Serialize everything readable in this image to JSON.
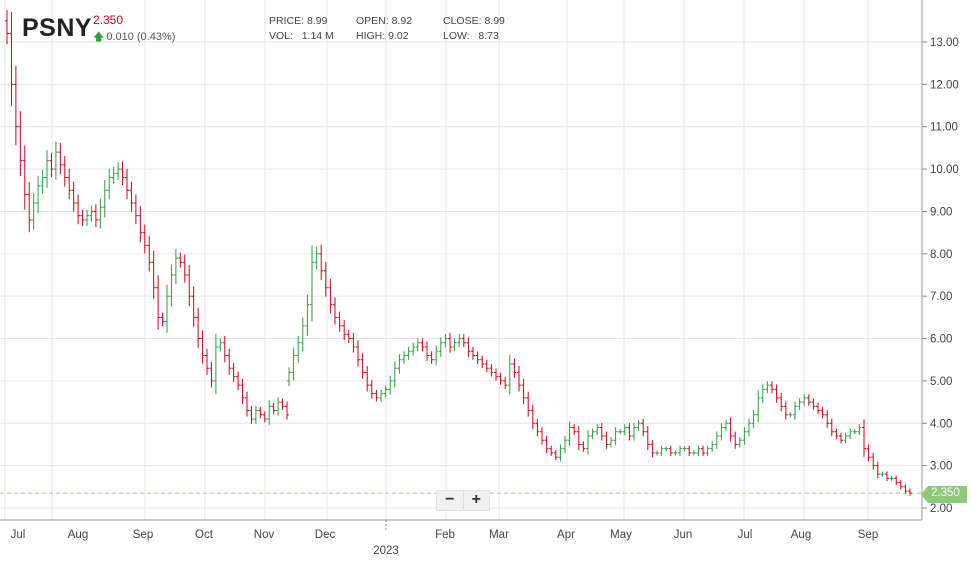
{
  "header": {
    "ticker": "PSNY",
    "last": "2.350",
    "change": "0.010 (0.43%)",
    "change_icon": "up-arrow-icon"
  },
  "stats": {
    "price_label": "PRICE:",
    "price": "8.99",
    "vol_label": "VOL:",
    "vol": "1.14 M",
    "open_label": "OPEN:",
    "open": "8.92",
    "high_label": "HIGH:",
    "high": "9.02",
    "close_label": "CLOSE:",
    "close": "8.99",
    "low_label": "LOW:",
    "low": "8.73"
  },
  "zoom": {
    "minus": "−",
    "plus": "+"
  },
  "current_price_label": "2.350",
  "colors": {
    "up": "#2e9e3e",
    "down": "#d0021b",
    "grid": "#e6e6e6",
    "tag": "#8cc97a",
    "dash": "#9ccf8f"
  },
  "chart_data": {
    "type": "ohlc",
    "y_axis_position": "right",
    "ylim": [
      1.7,
      14.0
    ],
    "y_ticks": [
      "2.00",
      "3.00",
      "4.00",
      "5.00",
      "6.00",
      "7.00",
      "8.00",
      "9.00",
      "10.00",
      "11.00",
      "12.00",
      "13.00"
    ],
    "x_ticks": [
      "Jul",
      "Aug",
      "Sep",
      "Oct",
      "Nov",
      "Dec",
      "Feb",
      "Mar",
      "Apr",
      "May",
      "Jun",
      "Jul",
      "Aug",
      "Sep"
    ],
    "year_label": "2023",
    "current_price": 2.35,
    "date_range": [
      "2022-06-24",
      "2023-09-22"
    ],
    "closes": [
      [
        13.2,
        12.0,
        11.0,
        10.2,
        9.4,
        8.8,
        9.2,
        9.6,
        9.8,
        10.2,
        10.0,
        10.4,
        10.1,
        9.8,
        9.5,
        9.2,
        8.9,
        8.8,
        8.9,
        9.0,
        8.8,
        9.1,
        9.5,
        9.8,
        9.9,
        10.0,
        9.8,
        9.5,
        9.2,
        8.9,
        8.5,
        8.2,
        7.8,
        7.2,
        6.5,
        6.4,
        7.0,
        7.5,
        7.9,
        7.8,
        7.5,
        7.0,
        6.5,
        6.0,
        5.6,
        5.3,
        5.0,
        5.8,
        5.9,
        5.6,
        5.3,
        5.1,
        4.9,
        4.6,
        4.3,
        4.1,
        4.3,
        4.2,
        4.1,
        4.4,
        4.3,
        4.5,
        4.4,
        4.2
      ],
      [
        5.2,
        5.6,
        5.9,
        6.3,
        6.8,
        7.8,
        8.0,
        7.6,
        7.2,
        6.8,
        6.5,
        6.3,
        6.1,
        6.0,
        5.8,
        5.5,
        5.2,
        4.9,
        4.7,
        4.6,
        4.7,
        4.8,
        5.0,
        5.3,
        5.5,
        5.6,
        5.7,
        5.8,
        5.9,
        5.8,
        5.6,
        5.5,
        5.7,
        5.9,
        6.0,
        5.8,
        5.9,
        6.0,
        5.9,
        5.7,
        5.6,
        5.5,
        5.4,
        5.3,
        5.2,
        5.1,
        5.0,
        4.9,
        5.4,
        5.2,
        4.9,
        4.6,
        4.3,
        4.0,
        3.8,
        3.6,
        3.4,
        3.3,
        3.2,
        3.4,
        3.6,
        3.9,
        3.8,
        3.5,
        3.4,
        3.7,
        3.8,
        3.9,
        3.7,
        3.5,
        3.6,
        3.8,
        3.8,
        3.9,
        3.7,
        3.9,
        4.0,
        3.8,
        3.5,
        3.3,
        3.3,
        3.4,
        3.4,
        3.3,
        3.3,
        3.4,
        3.4,
        3.3,
        3.3,
        3.4,
        3.3,
        3.4,
        3.5,
        3.7,
        3.9,
        4.0,
        3.7,
        3.5,
        3.6,
        3.8,
        4.0,
        4.2,
        4.6,
        4.8,
        4.9,
        4.8,
        4.6,
        4.4,
        4.2,
        4.2,
        4.4,
        4.5,
        4.6,
        4.5,
        4.4,
        4.3,
        4.2,
        4.0,
        3.8,
        3.7,
        3.6,
        3.7,
        3.8,
        3.8,
        3.9,
        3.4,
        3.2,
        3.0,
        2.8,
        2.8,
        2.7,
        2.7,
        2.6,
        2.5,
        2.4,
        2.35
      ]
    ]
  }
}
